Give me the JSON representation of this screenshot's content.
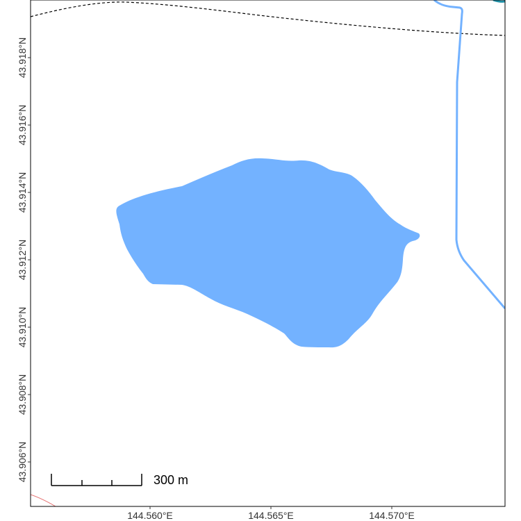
{
  "map": {
    "x_ticks": [
      {
        "lon": 144.56,
        "label": "144.560°E"
      },
      {
        "lon": 144.565,
        "label": "144.565°E"
      },
      {
        "lon": 144.57,
        "label": "144.570°E"
      }
    ],
    "y_ticks": [
      {
        "lat": 43.906,
        "label": "43.906°N"
      },
      {
        "lat": 43.908,
        "label": "43.908°N"
      },
      {
        "lat": 43.91,
        "label": "43.910°N"
      },
      {
        "lat": 43.912,
        "label": "43.912°N"
      },
      {
        "lat": 43.914,
        "label": "43.914°N"
      },
      {
        "lat": 43.916,
        "label": "43.916°N"
      },
      {
        "lat": 43.918,
        "label": "43.918°N"
      }
    ],
    "scale_bar": {
      "label": "300 m"
    },
    "colors": {
      "lake": "#73B2FF",
      "river": "#73B2FF",
      "river_dark": "#1F8FA6",
      "boundary": "#000000",
      "road": "#E57373",
      "frame": "#000000",
      "background": "#FFFFFF"
    }
  }
}
